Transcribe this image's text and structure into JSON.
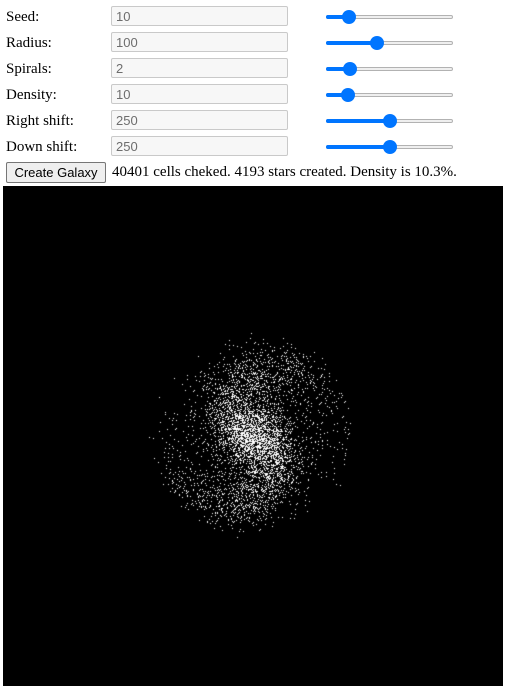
{
  "controls": [
    {
      "id": "seed",
      "label": "Seed:",
      "value": "10",
      "slider_fraction": 0.14
    },
    {
      "id": "radius",
      "label": "Radius:",
      "value": "100",
      "slider_fraction": 0.39
    },
    {
      "id": "spirals",
      "label": "Spirals:",
      "value": "2",
      "slider_fraction": 0.15
    },
    {
      "id": "density",
      "label": "Density:",
      "value": "10",
      "slider_fraction": 0.13
    },
    {
      "id": "right-shift",
      "label": "Right shift:",
      "value": "250",
      "slider_fraction": 0.5
    },
    {
      "id": "down-shift",
      "label": "Down shift:",
      "value": "250",
      "slider_fraction": 0.5
    }
  ],
  "create_button": "Create Galaxy",
  "status_text": "40401 cells cheked. 4193 stars created. Density is 10.3%.",
  "galaxy": {
    "background": "#000000",
    "star_color": "#ffffff",
    "seed": 10,
    "radius": 100,
    "spirals": 2,
    "density": 10,
    "right_shift": 250,
    "down_shift": 250,
    "stars_created": 4193
  },
  "colors": {
    "accent": "#0075ff"
  }
}
